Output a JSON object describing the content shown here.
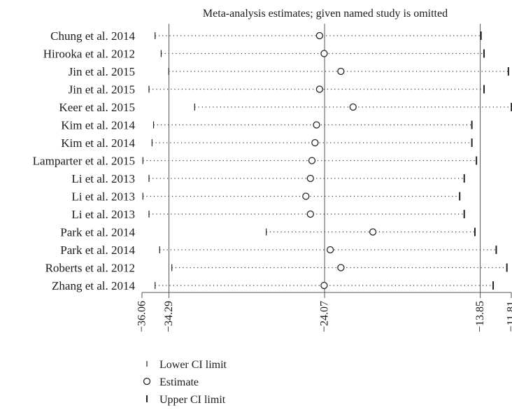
{
  "chart_data": {
    "type": "scatter",
    "title": "Meta-analysis estimates; given named study is omitted",
    "x_range": [
      -36.06,
      -11.81
    ],
    "reference_lines": [
      -34.29,
      -24.07,
      -13.85
    ],
    "tick_values": [
      -36.06,
      -34.29,
      -24.07,
      -13.85,
      -11.81
    ],
    "tick_labels": [
      "−36.06",
      "−34.29",
      "−24.07",
      "−13.85",
      "−11.81"
    ],
    "studies": [
      {
        "name": "Chung et al. 2014",
        "lower": -35.2,
        "estimate": -24.4,
        "upper": -13.8
      },
      {
        "name": "Hirooka et al. 2012",
        "lower": -34.8,
        "estimate": -24.1,
        "upper": -13.6
      },
      {
        "name": "Jin et al. 2015",
        "lower": -34.3,
        "estimate": -23.0,
        "upper": -12.0
      },
      {
        "name": "Jin et al. 2015",
        "lower": -35.6,
        "estimate": -24.4,
        "upper": -13.6
      },
      {
        "name": "Keer et al. 2015",
        "lower": -32.6,
        "estimate": -22.2,
        "upper": -11.8
      },
      {
        "name": "Kim et al. 2014",
        "lower": -35.3,
        "estimate": -24.6,
        "upper": -14.4
      },
      {
        "name": "Kim et al. 2014",
        "lower": -35.4,
        "estimate": -24.7,
        "upper": -14.4
      },
      {
        "name": "Lamparter et al. 2015",
        "lower": -36.0,
        "estimate": -24.9,
        "upper": -14.1
      },
      {
        "name": "Li et al. 2013",
        "lower": -35.6,
        "estimate": -25.0,
        "upper": -14.9
      },
      {
        "name": "Li et al. 2013",
        "lower": -36.0,
        "estimate": -25.3,
        "upper": -15.2
      },
      {
        "name": "Li et al. 2013",
        "lower": -35.6,
        "estimate": -25.0,
        "upper": -14.9
      },
      {
        "name": "Park et al. 2014",
        "lower": -27.9,
        "estimate": -20.9,
        "upper": -14.2
      },
      {
        "name": "Park et al. 2014",
        "lower": -34.9,
        "estimate": -23.7,
        "upper": -12.8
      },
      {
        "name": "Roberts et al. 2012",
        "lower": -34.1,
        "estimate": -23.0,
        "upper": -12.1
      },
      {
        "name": "Zhang et al. 2014",
        "lower": -35.2,
        "estimate": -24.1,
        "upper": -13.0
      }
    ],
    "legend": [
      {
        "symbol": "lower",
        "label": "Lower CI limit"
      },
      {
        "symbol": "estimate",
        "label": "Estimate"
      },
      {
        "symbol": "upper",
        "label": "Upper CI limit"
      }
    ]
  }
}
